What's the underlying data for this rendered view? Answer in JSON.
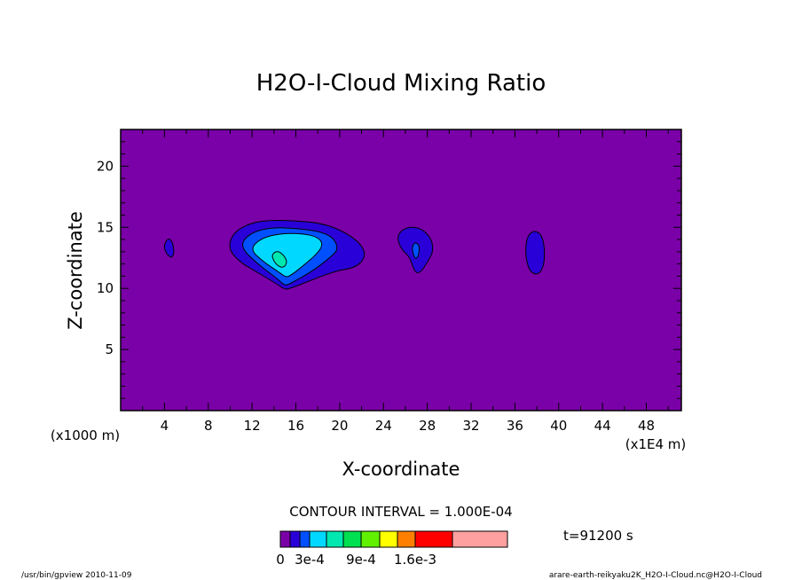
{
  "chart_data": {
    "type": "contour",
    "title": "H2O-I-Cloud Mixing Ratio",
    "xlabel": "X-coordinate",
    "ylabel": "Z-coordinate",
    "x_unit": "(x1E4 m)",
    "y_unit": "(x1000 m)",
    "xlim": [
      0,
      51.2
    ],
    "ylim": [
      0,
      23
    ],
    "x_ticks": [
      4,
      8,
      12,
      16,
      20,
      24,
      28,
      32,
      36,
      40,
      44,
      48
    ],
    "y_ticks": [
      5,
      10,
      15,
      20
    ],
    "contour_interval_text": "CONTOUR INTERVAL = 1.000E-04",
    "time_text": "t=91200 s",
    "colorbar": {
      "colors": [
        "#7a00a8",
        "#2a00d8",
        "#0050ff",
        "#00d8ff",
        "#00e8b0",
        "#00e050",
        "#60f000",
        "#ffff00",
        "#ff8000",
        "#ff0000",
        "#ffa0a0"
      ],
      "tick_labels": [
        "0",
        "3e-4",
        "9e-4",
        "1.6e-3"
      ]
    },
    "blobs": [
      {
        "level": 1,
        "points": [
          [
            4.0,
            13.6
          ],
          [
            4.3,
            14.1
          ],
          [
            4.7,
            13.9
          ],
          [
            4.9,
            13.0
          ],
          [
            4.7,
            12.5
          ],
          [
            4.3,
            12.7
          ],
          [
            4.0,
            13.2
          ]
        ]
      },
      {
        "level": 1,
        "points": [
          [
            9.8,
            13.3
          ],
          [
            10.3,
            14.6
          ],
          [
            12.0,
            15.4
          ],
          [
            14.0,
            15.6
          ],
          [
            16.5,
            15.5
          ],
          [
            18.5,
            15.3
          ],
          [
            20.5,
            14.6
          ],
          [
            22.0,
            13.6
          ],
          [
            22.4,
            12.6
          ],
          [
            21.5,
            11.7
          ],
          [
            19.5,
            11.4
          ],
          [
            17.5,
            10.7
          ],
          [
            15.5,
            10.0
          ],
          [
            15.0,
            9.9
          ],
          [
            14.2,
            10.4
          ],
          [
            12.5,
            11.3
          ],
          [
            10.8,
            12.2
          ]
        ]
      },
      {
        "level": 2,
        "points": [
          [
            10.9,
            13.4
          ],
          [
            11.6,
            14.4
          ],
          [
            13.5,
            15.0
          ],
          [
            16.0,
            14.9
          ],
          [
            18.0,
            14.7
          ],
          [
            19.4,
            14.2
          ],
          [
            19.9,
            13.2
          ],
          [
            19.1,
            12.5
          ],
          [
            17.5,
            11.4
          ],
          [
            15.5,
            10.4
          ],
          [
            15.0,
            10.2
          ],
          [
            14.3,
            10.8
          ],
          [
            12.5,
            12.0
          ]
        ]
      },
      {
        "level": 3,
        "points": [
          [
            11.8,
            13.2
          ],
          [
            12.8,
            14.1
          ],
          [
            14.6,
            14.5
          ],
          [
            16.6,
            14.5
          ],
          [
            18.0,
            14.2
          ],
          [
            18.5,
            13.6
          ],
          [
            17.9,
            12.8
          ],
          [
            16.6,
            11.8
          ],
          [
            15.6,
            11.1
          ],
          [
            15.1,
            10.9
          ],
          [
            14.5,
            11.3
          ],
          [
            13.0,
            12.2
          ]
        ]
      },
      {
        "level": 4,
        "points": [
          [
            13.8,
            12.7
          ],
          [
            14.1,
            13.0
          ],
          [
            14.5,
            13.0
          ],
          [
            15.0,
            12.6
          ],
          [
            15.2,
            12.1
          ],
          [
            14.9,
            11.7
          ],
          [
            14.4,
            11.8
          ],
          [
            14.0,
            12.2
          ]
        ]
      },
      {
        "level": 1,
        "points": [
          [
            25.2,
            14.3
          ],
          [
            26.0,
            15.0
          ],
          [
            27.3,
            15.0
          ],
          [
            28.3,
            14.2
          ],
          [
            28.6,
            13.1
          ],
          [
            28.0,
            12.1
          ],
          [
            27.3,
            11.2
          ],
          [
            26.8,
            11.4
          ],
          [
            26.4,
            12.6
          ],
          [
            25.6,
            13.2
          ]
        ]
      },
      {
        "level": 2,
        "points": [
          [
            26.6,
            13.4
          ],
          [
            26.9,
            13.8
          ],
          [
            27.3,
            13.5
          ],
          [
            27.2,
            12.6
          ],
          [
            26.9,
            12.4
          ],
          [
            26.7,
            12.8
          ]
        ]
      },
      {
        "level": 1,
        "points": [
          [
            37.0,
            13.9
          ],
          [
            37.5,
            14.7
          ],
          [
            38.3,
            14.6
          ],
          [
            38.7,
            13.6
          ],
          [
            38.7,
            12.0
          ],
          [
            38.2,
            11.1
          ],
          [
            37.4,
            11.3
          ],
          [
            37.0,
            12.4
          ]
        ]
      }
    ]
  },
  "footer": {
    "left": "/usr/bin/gpview   2010-11-09",
    "right": "arare-earth-reikyaku2K_H2O-I-Cloud.nc@H2O-I-Cloud"
  }
}
